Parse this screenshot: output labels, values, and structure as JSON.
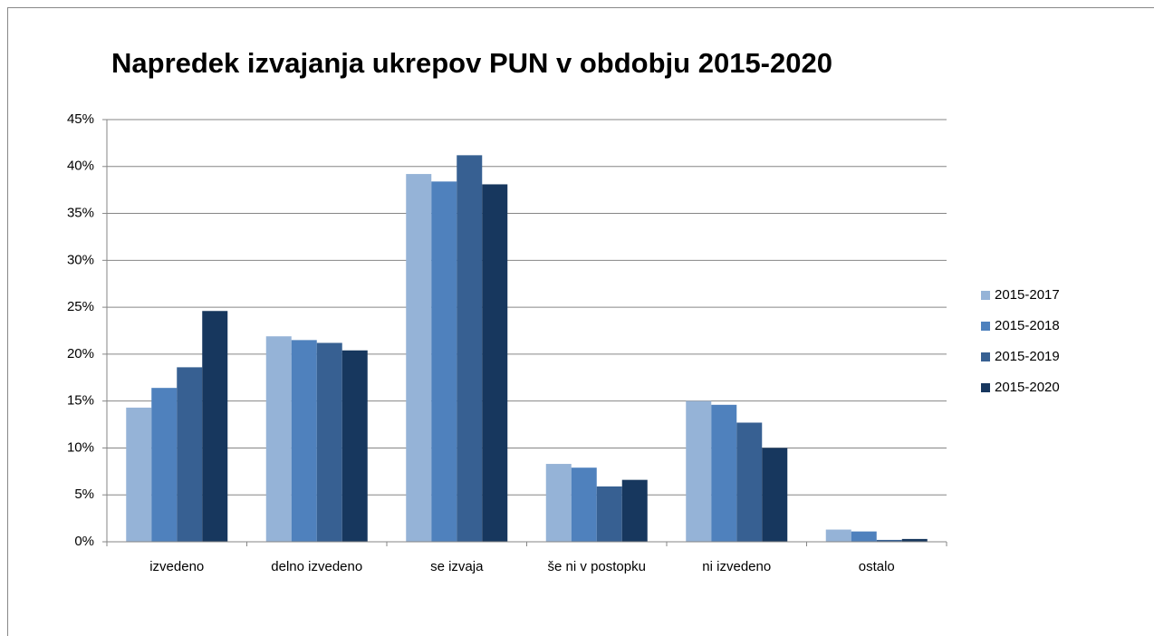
{
  "chart_data": {
    "type": "bar",
    "title": "Napredek izvajanja ukrepov PUN v obdobju 2015-2020",
    "categories": [
      "izvedeno",
      "delno izvedeno",
      "se izvaja",
      "še ni v postopku",
      "ni izvedeno",
      "ostalo"
    ],
    "series": [
      {
        "name": "2015-2017",
        "color": "#95b3d7",
        "values": [
          14.3,
          21.9,
          39.2,
          8.3,
          15.0,
          1.3
        ]
      },
      {
        "name": "2015-2018",
        "color": "#4f81bd",
        "values": [
          16.4,
          21.5,
          38.4,
          7.9,
          14.6,
          1.1
        ]
      },
      {
        "name": "2015-2019",
        "color": "#376092",
        "values": [
          18.6,
          21.2,
          41.2,
          5.9,
          12.7,
          0.2
        ]
      },
      {
        "name": "2015-2020",
        "color": "#17375e",
        "values": [
          24.6,
          20.4,
          38.1,
          6.6,
          10.0,
          0.3
        ]
      }
    ],
    "ylim": [
      0,
      45
    ],
    "yticks": [
      {
        "value": 0,
        "label": "0%"
      },
      {
        "value": 5,
        "label": "5%"
      },
      {
        "value": 10,
        "label": "10%"
      },
      {
        "value": 15,
        "label": "15%"
      },
      {
        "value": 20,
        "label": "20%"
      },
      {
        "value": 25,
        "label": "25%"
      },
      {
        "value": 30,
        "label": "30%"
      },
      {
        "value": 35,
        "label": "35%"
      },
      {
        "value": 40,
        "label": "40%"
      },
      {
        "value": 45,
        "label": "45%"
      }
    ],
    "grid": true,
    "legend": "right"
  }
}
